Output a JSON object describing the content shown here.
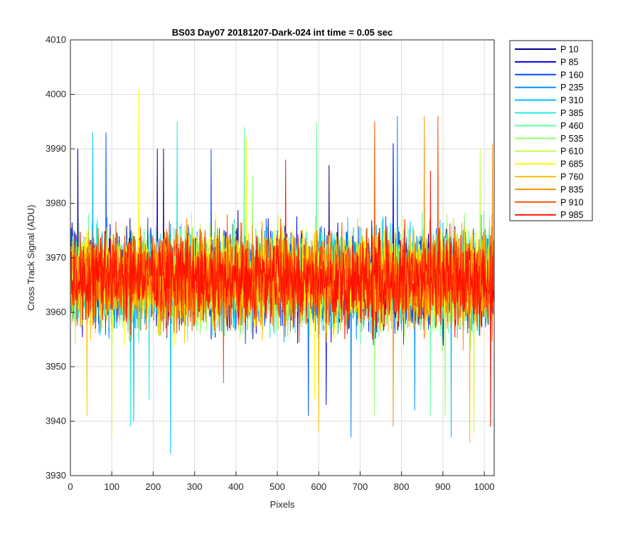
{
  "chart_data": {
    "type": "line",
    "title": "BS03 Day07 20181207-Dark-024 int time = 0.05 sec",
    "xlabel": "Pixels",
    "ylabel": "Cross Track Signal (ADU)",
    "xlim": [
      0,
      1024
    ],
    "ylim": [
      3930,
      4010
    ],
    "xticks": [
      0,
      100,
      200,
      300,
      400,
      500,
      600,
      700,
      800,
      900,
      1000
    ],
    "yticks": [
      3930,
      3940,
      3950,
      3960,
      3970,
      3980,
      3990,
      4000,
      4010
    ],
    "grid": true,
    "legend_position": "outside-top-right",
    "points_per_series": 1024,
    "series": [
      {
        "name": "P 10",
        "color": "#00008f",
        "mean": 3966,
        "noise": 7.5,
        "peaks": [
          [
            18,
            3990
          ],
          [
            225,
            3990
          ],
          [
            625,
            3987
          ]
        ]
      },
      {
        "name": "P 85",
        "color": "#0000ef",
        "mean": 3966,
        "noise": 7.5,
        "peaks": [
          [
            210,
            3990
          ],
          [
            780,
            3991
          ],
          [
            618,
            3943
          ]
        ]
      },
      {
        "name": "P 160",
        "color": "#0050ff",
        "mean": 3966,
        "noise": 7.5,
        "peaks": [
          [
            86,
            3993
          ],
          [
            340,
            3990
          ],
          [
            575,
            3941
          ]
        ]
      },
      {
        "name": "P 235",
        "color": "#0090ff",
        "mean": 3966,
        "noise": 7.5,
        "peaks": [
          [
            790,
            3996
          ],
          [
            678,
            3937
          ],
          [
            832,
            3942
          ]
        ]
      },
      {
        "name": "P 310",
        "color": "#00c0ff",
        "mean": 3966,
        "noise": 7.5,
        "peaks": [
          [
            54,
            3993
          ],
          [
            153,
            3940
          ],
          [
            920,
            3937
          ],
          [
            242,
            3933
          ]
        ]
      },
      {
        "name": "P 385",
        "color": "#20efdf",
        "mean": 3966,
        "noise": 7.5,
        "peaks": [
          [
            258,
            3995
          ],
          [
            145,
            3939
          ],
          [
            190,
            3944
          ]
        ]
      },
      {
        "name": "P 460",
        "color": "#60ffa0",
        "mean": 3966,
        "noise": 7.5,
        "peaks": [
          [
            420,
            3994
          ],
          [
            595,
            3995
          ],
          [
            870,
            3941
          ]
        ]
      },
      {
        "name": "P 535",
        "color": "#90ff70",
        "mean": 3966,
        "noise": 7.5,
        "peaks": [
          [
            440,
            3985
          ],
          [
            735,
            3941
          ],
          [
            905,
            3941
          ]
        ]
      },
      {
        "name": "P 610",
        "color": "#c0ff40",
        "mean": 3966,
        "noise": 7.5,
        "peaks": [
          [
            990,
            3990
          ],
          [
            100,
            3937
          ],
          [
            975,
            3938
          ]
        ]
      },
      {
        "name": "P 685",
        "color": "#ffff00",
        "mean": 3966,
        "noise": 7.5,
        "peaks": [
          [
            165,
            4001
          ],
          [
            425,
            3992
          ],
          [
            590,
            3944
          ]
        ]
      },
      {
        "name": "P 760",
        "color": "#ffc000",
        "mean": 3966,
        "noise": 7.5,
        "peaks": [
          [
            600,
            3938
          ],
          [
            40,
            3941
          ],
          [
            965,
            3936
          ]
        ]
      },
      {
        "name": "P 835",
        "color": "#ff9000",
        "mean": 3966,
        "noise": 7.5,
        "peaks": [
          [
            855,
            3996
          ],
          [
            780,
            3939
          ],
          [
            1020,
            3991
          ]
        ]
      },
      {
        "name": "P 910",
        "color": "#ff5000",
        "mean": 3966,
        "noise": 7.5,
        "peaks": [
          [
            735,
            3995
          ],
          [
            888,
            3996
          ],
          [
            370,
            3947
          ]
        ]
      },
      {
        "name": "P 985",
        "color": "#ff1000",
        "mean": 3966,
        "noise": 7.5,
        "peaks": [
          [
            520,
            3988
          ],
          [
            1015,
            3939
          ],
          [
            870,
            3986
          ]
        ]
      }
    ]
  }
}
